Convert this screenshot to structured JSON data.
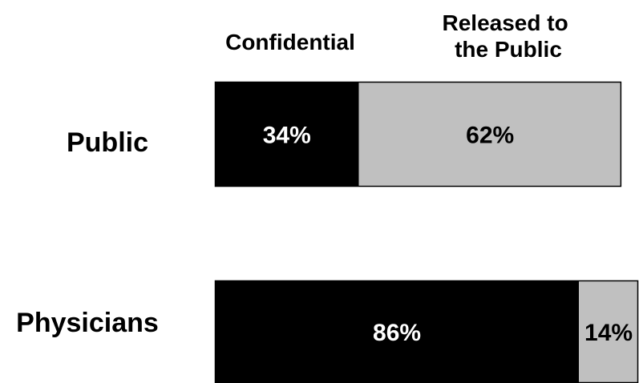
{
  "chart_data": {
    "type": "bar",
    "orientation": "horizontal",
    "stacked": true,
    "categories": [
      "Public",
      "Physicians"
    ],
    "series": [
      {
        "name": "Confidential",
        "values": [
          34,
          86
        ],
        "labels": [
          "34%",
          "86%"
        ],
        "color": "#000000",
        "label_color": "#ffffff"
      },
      {
        "name": "Released to the Public",
        "name_lines": [
          "Released to",
          "the Public"
        ],
        "values": [
          62,
          14
        ],
        "labels": [
          "62%",
          "14%"
        ],
        "color": "#c0c0c0",
        "label_color": "#000000"
      }
    ],
    "xlim": [
      0,
      100
    ],
    "grid": false,
    "legend": "top"
  }
}
